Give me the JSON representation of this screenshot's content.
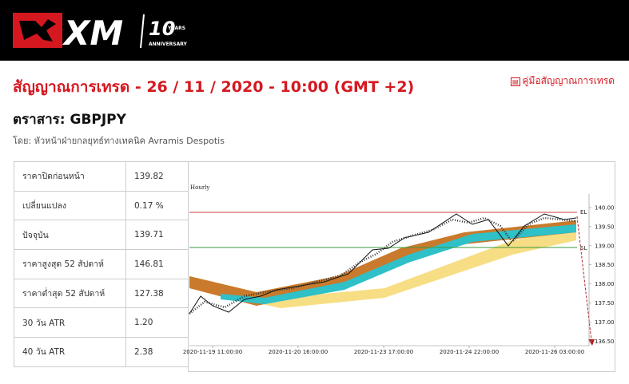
{
  "header": {
    "logo": "XM",
    "anniversary_number": "10",
    "anniversary_years": "YEARS",
    "anniversary_word": "ANNIVERSARY"
  },
  "title": "สัญญาณการเทรด - 26 / 11 / 2020 - 10:00 (GMT +2)",
  "guide_link": "คู่มือสัญญาณการเทรด",
  "instrument": "ตราสาร: GBPJPY",
  "author": "โดย: หัวหน้าฝ่ายกลยุทธ์ทางเทคนิค Avramis Despotis",
  "table": {
    "rows": [
      [
        "ราคาปิดก่อนหน้า",
        "139.82"
      ],
      [
        "เปลี่ยนแปลง",
        "0.17 %"
      ],
      [
        "ปัจจุบัน",
        "139.71"
      ],
      [
        "ราคาสูงสุด 52 สัปดาห์",
        "146.81"
      ],
      [
        "ราคาต่ำสุด 52 สัปดาห์",
        "127.38"
      ],
      [
        "30 วัน ATR",
        "1.20"
      ],
      [
        "40 วัน ATR",
        "2.38"
      ]
    ]
  },
  "chart": {
    "timeframe": "Hourly",
    "y_axis_labels": [
      "140.00",
      "139.50",
      "139.00",
      "138.50",
      "138.00",
      "137.50",
      "137.00",
      "136.50"
    ],
    "x_axis_labels": [
      "2020-11-19 11:00:00",
      "2020-11-20 16:00:00",
      "2020-11-23 17:00:00",
      "2020-11-24 22:00:00",
      "2020-11-26 03:00:00"
    ],
    "entry_label": "EL",
    "stop_label": "SL"
  }
}
